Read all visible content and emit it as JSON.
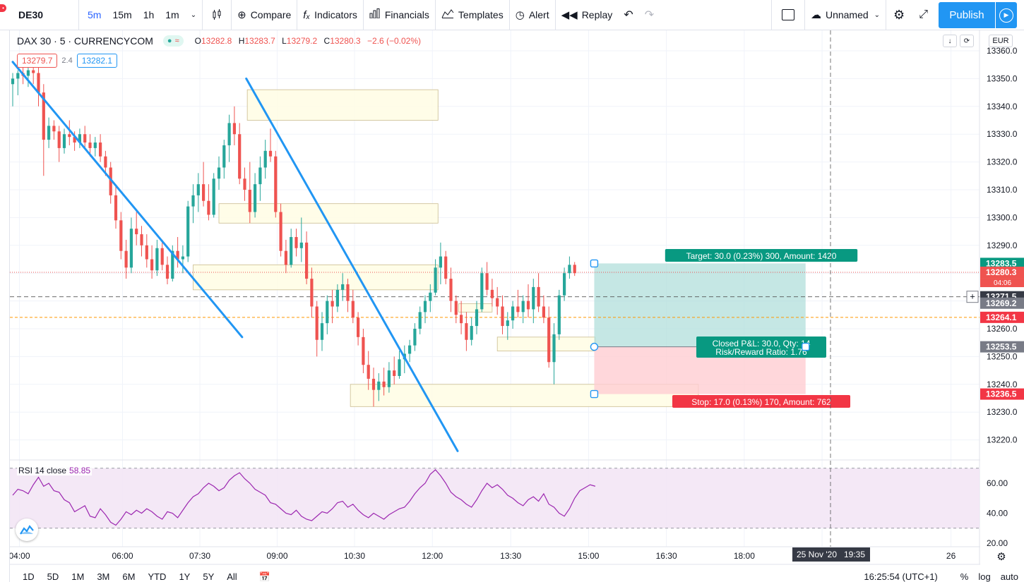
{
  "toolbar": {
    "symbol": "DE30",
    "intervals": [
      "5m",
      "15m",
      "1h",
      "1m"
    ],
    "active_interval": "5m",
    "compare": "Compare",
    "indicators": "Indicators",
    "financials": "Financials",
    "templates": "Templates",
    "alert": "Alert",
    "replay": "Replay",
    "layout_name": "Unnamed",
    "publish": "Publish"
  },
  "legend": {
    "title": "DAX 30 · 5 · CURRENCYCOM",
    "pill": "≈",
    "o_label": "O",
    "o": "13282.8",
    "h_label": "H",
    "h": "13283.7",
    "l_label": "L",
    "l": "13279.2",
    "c_label": "C",
    "c": "13280.3",
    "change": "−2.6 (−0.02%)",
    "bid": "13279.7",
    "spread": "2.4",
    "ask": "13282.1"
  },
  "axis": {
    "currency": "EUR",
    "price_ticks": [
      "13360.0",
      "13350.0",
      "13340.0",
      "13330.0",
      "13320.0",
      "13310.0",
      "13300.0",
      "13290.0",
      "13280.0",
      "13270.0",
      "13260.0",
      "13250.0",
      "13240.0",
      "13230.0",
      "13220.0"
    ],
    "time_ticks": [
      "04:00",
      "06:00",
      "07:30",
      "09:00",
      "10:30",
      "12:00",
      "13:30",
      "15:00",
      "16:30",
      "18:00",
      "19:30",
      "26"
    ],
    "crosshair_date": "25 Nov '20",
    "crosshair_time": "19:35",
    "labels": {
      "target": "13283.5",
      "last": "13280.3",
      "countdown": "04:06",
      "crosshair": "13271.5",
      "ask_line": "13269.2",
      "bid_line": "13264.1",
      "entry": "13253.5",
      "stop": "13236.5"
    }
  },
  "position": {
    "target_label": "Target: 30.0 (0.23%) 300, Amount: 1420",
    "stop_label": "Stop: 17.0 (0.13%) 170, Amount: 762",
    "pnl_label": "Closed P&L: 30.0, Qty: 14",
    "ratio_label": "Risk/Reward Ratio: 1.76"
  },
  "rsi": {
    "label": "RSI 14 close",
    "value": "58.85",
    "ticks": [
      "60.00",
      "40.00",
      "20.00"
    ]
  },
  "bottom": {
    "ranges": [
      "1D",
      "5D",
      "1M",
      "3M",
      "6M",
      "YTD",
      "1Y",
      "5Y",
      "All"
    ],
    "clock": "16:25:54 (UTC+1)",
    "percent": "%",
    "log": "log",
    "auto": "auto"
  },
  "colors": {
    "up": "#26a69a",
    "down": "#ef5350",
    "trendline": "#2196f3",
    "zone_fill": "#fffde7",
    "target_fill": "#b2dfdb",
    "stop_fill": "#ffcdd2",
    "rsi": "#9c27b0",
    "rsi_band": "#f3e5f5"
  },
  "chart_data": {
    "type": "candlestick",
    "symbol": "DE30",
    "interval": "5m",
    "ylim": [
      13215,
      13362
    ],
    "candles": [
      [
        13348,
        13352,
        13340,
        13350
      ],
      [
        13350,
        13353,
        13344,
        13352
      ],
      [
        13352,
        13356,
        13348,
        13351
      ],
      [
        13351,
        13355,
        13347,
        13353
      ],
      [
        13353,
        13356,
        13348,
        13352
      ],
      [
        13352,
        13354,
        13340,
        13345
      ],
      [
        13345,
        13348,
        13315,
        13328
      ],
      [
        13328,
        13336,
        13325,
        13333
      ],
      [
        13333,
        13335,
        13328,
        13331
      ],
      [
        13331,
        13333,
        13320,
        13325
      ],
      [
        13325,
        13332,
        13323,
        13330
      ],
      [
        13330,
        13335,
        13326,
        13329
      ],
      [
        13329,
        13331,
        13324,
        13327
      ],
      [
        13327,
        13332,
        13325,
        13330
      ],
      [
        13330,
        13333,
        13325,
        13327
      ],
      [
        13327,
        13330,
        13322,
        13325
      ],
      [
        13325,
        13329,
        13322,
        13327
      ],
      [
        13327,
        13330,
        13320,
        13322
      ],
      [
        13322,
        13324,
        13315,
        13318
      ],
      [
        13318,
        13320,
        13305,
        13308
      ],
      [
        13308,
        13312,
        13296,
        13299
      ],
      [
        13299,
        13302,
        13285,
        13288
      ],
      [
        13288,
        13292,
        13278,
        13282
      ],
      [
        13282,
        13300,
        13280,
        13296
      ],
      [
        13296,
        13302,
        13290,
        13294
      ],
      [
        13294,
        13297,
        13286,
        13290
      ],
      [
        13290,
        13294,
        13282,
        13285
      ],
      [
        13285,
        13290,
        13278,
        13281
      ],
      [
        13281,
        13292,
        13279,
        13289
      ],
      [
        13289,
        13292,
        13281,
        13283
      ],
      [
        13283,
        13286,
        13276,
        13278
      ],
      [
        13278,
        13290,
        13277,
        13288
      ],
      [
        13288,
        13293,
        13282,
        13285
      ],
      [
        13285,
        13290,
        13280,
        13286
      ],
      [
        13286,
        13306,
        13284,
        13304
      ],
      [
        13304,
        13312,
        13298,
        13308
      ],
      [
        13308,
        13316,
        13302,
        13312
      ],
      [
        13312,
        13320,
        13304,
        13306
      ],
      [
        13306,
        13312,
        13299,
        13301
      ],
      [
        13301,
        13316,
        13300,
        13314
      ],
      [
        13314,
        13322,
        13310,
        13318
      ],
      [
        13318,
        13328,
        13314,
        13326
      ],
      [
        13326,
        13337,
        13320,
        13334
      ],
      [
        13334,
        13340,
        13326,
        13330
      ],
      [
        13330,
        13334,
        13312,
        13314
      ],
      [
        13314,
        13318,
        13306,
        13310
      ],
      [
        13310,
        13320,
        13298,
        13302
      ],
      [
        13302,
        13316,
        13300,
        13312
      ],
      [
        13312,
        13322,
        13306,
        13318
      ],
      [
        13318,
        13328,
        13314,
        13324
      ],
      [
        13324,
        13332,
        13320,
        13322
      ],
      [
        13322,
        13324,
        13300,
        13302
      ],
      [
        13302,
        13305,
        13286,
        13288
      ],
      [
        13288,
        13292,
        13280,
        13283
      ],
      [
        13283,
        13296,
        13282,
        13293
      ],
      [
        13293,
        13296,
        13286,
        13289
      ],
      [
        13289,
        13300,
        13284,
        13291
      ],
      [
        13291,
        13295,
        13276,
        13278
      ],
      [
        13278,
        13282,
        13264,
        13268
      ],
      [
        13268,
        13270,
        13250,
        13256
      ],
      [
        13256,
        13266,
        13252,
        13262
      ],
      [
        13262,
        13272,
        13258,
        13270
      ],
      [
        13270,
        13274,
        13262,
        13268
      ],
      [
        13268,
        13276,
        13266,
        13274
      ],
      [
        13274,
        13280,
        13270,
        13276
      ],
      [
        13276,
        13278,
        13266,
        13270
      ],
      [
        13270,
        13274,
        13262,
        13264
      ],
      [
        13264,
        13266,
        13254,
        13257
      ],
      [
        13257,
        13260,
        13244,
        13247
      ],
      [
        13247,
        13252,
        13238,
        13242
      ],
      [
        13242,
        13246,
        13232,
        13238
      ],
      [
        13238,
        13244,
        13234,
        13241
      ],
      [
        13241,
        13246,
        13236,
        13239
      ],
      [
        13239,
        13248,
        13237,
        13245
      ],
      [
        13245,
        13250,
        13240,
        13243
      ],
      [
        13243,
        13252,
        13242,
        13249
      ],
      [
        13249,
        13254,
        13244,
        13251
      ],
      [
        13251,
        13256,
        13248,
        13254
      ],
      [
        13254,
        13262,
        13252,
        13260
      ],
      [
        13260,
        13268,
        13258,
        13266
      ],
      [
        13266,
        13272,
        13262,
        13270
      ],
      [
        13270,
        13276,
        13266,
        13273
      ],
      [
        13273,
        13285,
        13272,
        13282
      ],
      [
        13282,
        13291,
        13276,
        13286
      ],
      [
        13286,
        13288,
        13276,
        13278
      ],
      [
        13278,
        13282,
        13266,
        13270
      ],
      [
        13270,
        13272,
        13262,
        13265
      ],
      [
        13265,
        13270,
        13258,
        13262
      ],
      [
        13262,
        13266,
        13252,
        13256
      ],
      [
        13256,
        13264,
        13254,
        13261
      ],
      [
        13261,
        13270,
        13258,
        13267
      ],
      [
        13267,
        13282,
        13266,
        13280
      ],
      [
        13280,
        13284,
        13272,
        13274
      ],
      [
        13274,
        13278,
        13268,
        13271
      ],
      [
        13271,
        13275,
        13265,
        13268
      ],
      [
        13268,
        13272,
        13258,
        13261
      ],
      [
        13261,
        13266,
        13256,
        13263
      ],
      [
        13263,
        13270,
        13260,
        13268
      ],
      [
        13268,
        13274,
        13264,
        13266
      ],
      [
        13266,
        13272,
        13262,
        13270
      ],
      [
        13270,
        13276,
        13264,
        13267
      ],
      [
        13267,
        13278,
        13262,
        13275
      ],
      [
        13275,
        13280,
        13266,
        13268
      ],
      [
        13268,
        13272,
        13262,
        13264
      ],
      [
        13264,
        13268,
        13246,
        13248
      ],
      [
        13248,
        13262,
        13240,
        13258
      ],
      [
        13258,
        13274,
        13256,
        13272
      ],
      [
        13272,
        13282,
        13270,
        13280
      ],
      [
        13280,
        13286,
        13278,
        13283
      ],
      [
        13283,
        13284,
        13279,
        13280
      ]
    ],
    "trendlines": [
      {
        "from": [
          0,
          13356
        ],
        "to": [
          44.5,
          13257
        ]
      },
      {
        "from": [
          45.3,
          13350
        ],
        "to": [
          86.3,
          13216
        ]
      }
    ],
    "zones": [
      [
        45.5,
        82.5,
        13346,
        13335
      ],
      [
        40,
        82.5,
        13305,
        13298
      ],
      [
        35,
        82.5,
        13283,
        13274
      ],
      [
        65.5,
        133,
        13240,
        13232
      ],
      [
        94,
        113,
        13257,
        13252
      ],
      [
        86.5,
        93,
        13269,
        13266
      ]
    ],
    "position": {
      "entry": 13253.5,
      "target": 13283.5,
      "stop": 13236.5,
      "start_index": 112.8,
      "end_index": 153.8
    },
    "rsi": {
      "ylim": [
        17,
        73
      ],
      "upper": 70,
      "lower": 30,
      "values": [
        52,
        56,
        55,
        53,
        59,
        64,
        58,
        60,
        55,
        54,
        49,
        47,
        41,
        43,
        45,
        38,
        37,
        43,
        39,
        34,
        32,
        36,
        41,
        39,
        42,
        40,
        43,
        41,
        38,
        36,
        41,
        40,
        37,
        42,
        47,
        51,
        53,
        57,
        60,
        58,
        55,
        57,
        62,
        65,
        67,
        63,
        60,
        56,
        54,
        52,
        47,
        46,
        43,
        40,
        39,
        42,
        38,
        36,
        35,
        38,
        41,
        40,
        43,
        47,
        48,
        44,
        46,
        42,
        39,
        37,
        40,
        38,
        36,
        39,
        41,
        43,
        44,
        48,
        53,
        57,
        60,
        66,
        69,
        65,
        60,
        54,
        51,
        49,
        46,
        44,
        49,
        55,
        60,
        57,
        59,
        56,
        52,
        50,
        47,
        45,
        49,
        51,
        48,
        53,
        46,
        44,
        40,
        38,
        43,
        50,
        55,
        57,
        59,
        58
      ]
    }
  }
}
